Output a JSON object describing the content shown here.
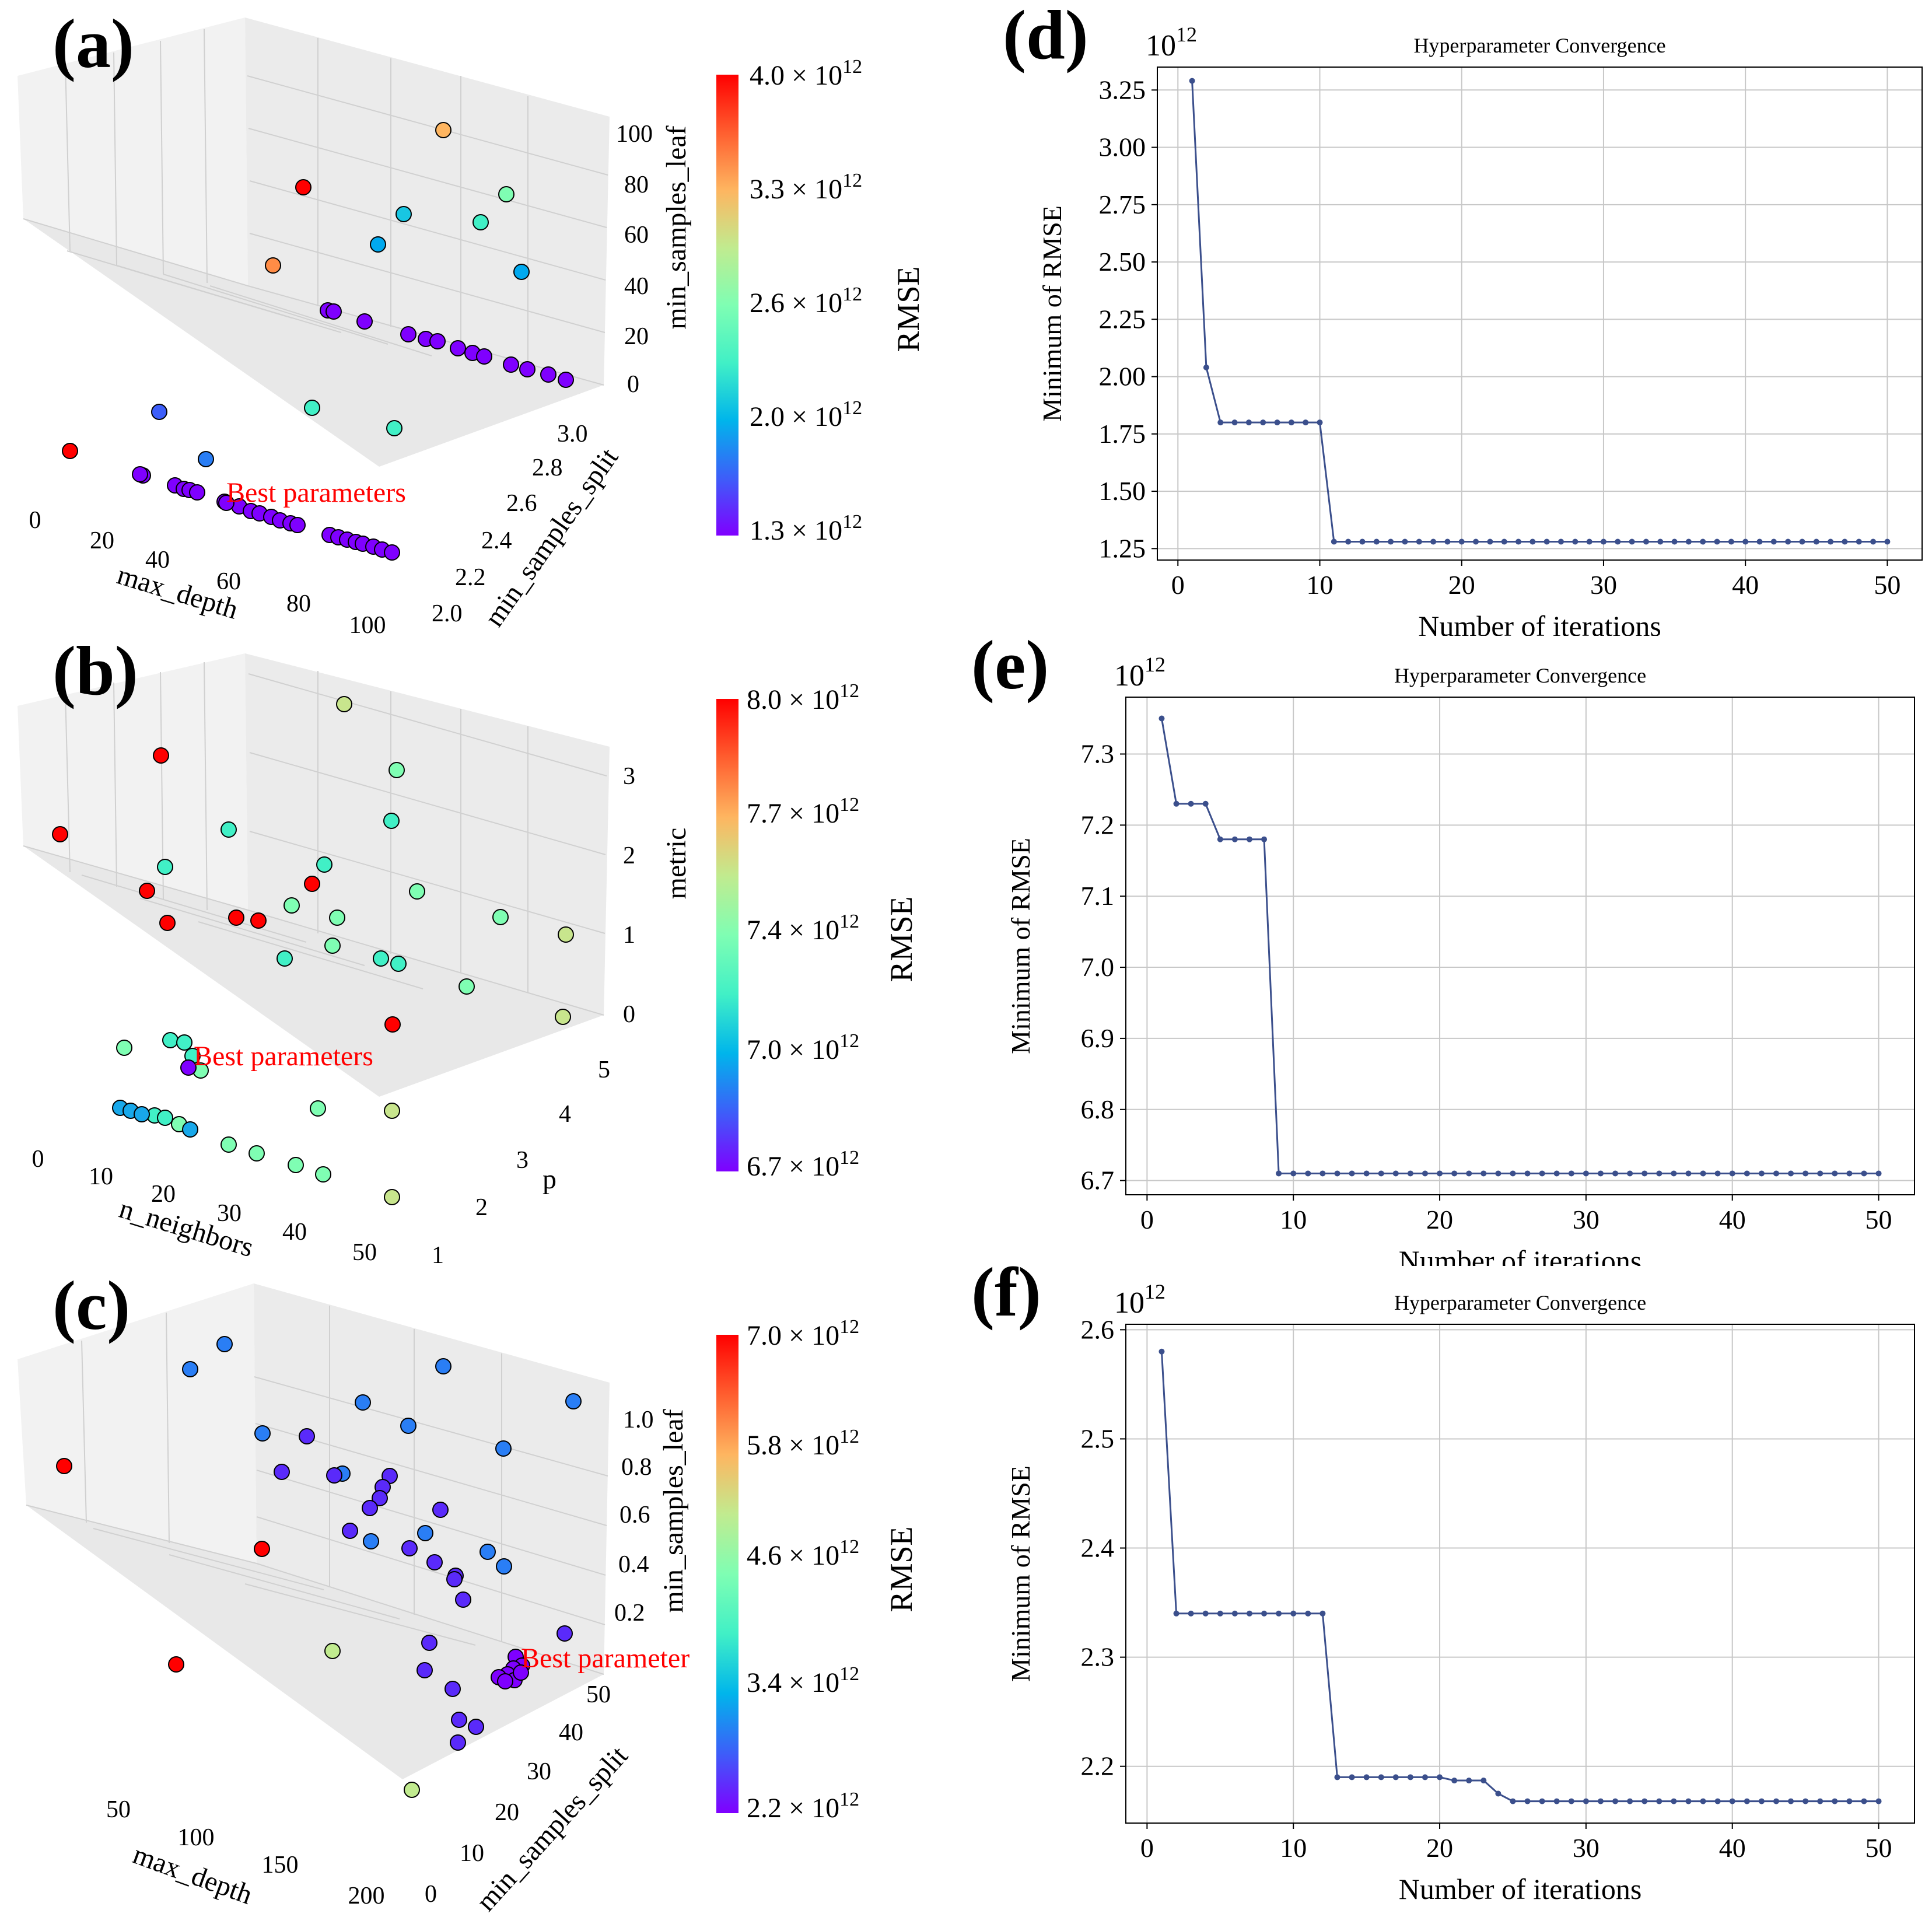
{
  "colors": {
    "line": "#3b4f8c",
    "grid": "#c8c8c8",
    "pane": "#f2f2f2",
    "best_label": "#ff0000",
    "colormap": [
      "#7f00ff",
      "#3d5ef9",
      "#00b5eb",
      "#41f0c6",
      "#7ffeb3",
      "#c1eb8f",
      "#feb560",
      "#ff5e2f",
      "#ff0000"
    ]
  },
  "panel_labels": [
    "(a)",
    "(b)",
    "(c)",
    "(d)",
    "(e)",
    "(f)"
  ],
  "scatter3d": [
    {
      "label": "(a)",
      "axes": {
        "x": {
          "label": "max_depth",
          "ticks": [
            "0",
            "20",
            "40",
            "60",
            "80",
            "100"
          ]
        },
        "y": {
          "label": "min_samples_split",
          "ticks": [
            "2.0",
            "2.2",
            "2.4",
            "2.6",
            "2.8",
            "3.0"
          ]
        },
        "z": {
          "label": "min_samples_leaf",
          "ticks": [
            "0",
            "20",
            "40",
            "60",
            "80",
            "100"
          ]
        }
      },
      "colorbar": {
        "label": "RMSE",
        "ticks": [
          "4.0 × 10",
          "3.3 × 10",
          "2.6 × 10",
          "2.0 × 10",
          "1.3 × 10"
        ],
        "exp": "12"
      },
      "annotation": "Best parameters",
      "point_colors": [
        "#ff0000",
        "#ff8c46",
        "#ff0000",
        "#feb560",
        "#7ffeb3",
        "#41f0c6",
        "#18c6e2",
        "#41f0c6",
        "#00a9ef",
        "#00a9ef",
        "#3d5ef9",
        "#41f0c6",
        "#41f0c6",
        "#2a7ef5",
        "#ff0000"
      ]
    },
    {
      "label": "(b)",
      "axes": {
        "x": {
          "label": "n_neighbors",
          "ticks": [
            "0",
            "10",
            "20",
            "30",
            "40",
            "50"
          ]
        },
        "y": {
          "label": "p",
          "ticks": [
            "1",
            "2",
            "3",
            "4",
            "5"
          ]
        },
        "z": {
          "label": "metric",
          "ticks": [
            "0",
            "1",
            "2",
            "3"
          ]
        }
      },
      "colorbar": {
        "label": "RMSE",
        "ticks": [
          "8.0 × 10",
          "7.7 × 10",
          "7.4 × 10",
          "7.0 × 10",
          "6.7 × 10"
        ],
        "exp": "12"
      },
      "annotation": "Best parameters"
    },
    {
      "label": "(c)",
      "axes": {
        "x": {
          "label": "max_depth",
          "ticks": [
            "50",
            "100",
            "150",
            "200"
          ]
        },
        "y": {
          "label": "min_samples_split",
          "ticks": [
            "0",
            "10",
            "20",
            "30",
            "40",
            "50"
          ]
        },
        "z": {
          "label": "min_samples_leaf",
          "ticks": [
            "0.2",
            "0.4",
            "0.6",
            "0.8",
            "1.0"
          ]
        }
      },
      "colorbar": {
        "label": "RMSE",
        "ticks": [
          "7.0 × 10",
          "5.8 × 10",
          "4.6 × 10",
          "3.4 × 10",
          "2.2 × 10"
        ],
        "exp": "12"
      },
      "annotation": "Best parameter"
    }
  ],
  "chart_data": [
    {
      "panel": "(d)",
      "type": "line",
      "title": "Hyperparameter Convergence",
      "xlabel": "Number of iterations",
      "ylabel": "Minimum of RMSE",
      "offset_text": "10",
      "offset_exp": "12",
      "xlim": [
        -1.45,
        52.45
      ],
      "ylim": [
        1.2,
        3.35
      ],
      "xticks": [
        0,
        10,
        20,
        30,
        40,
        50
      ],
      "yticks": [
        1.25,
        1.5,
        1.75,
        2.0,
        2.25,
        2.5,
        2.75,
        3.0,
        3.25
      ],
      "ytick_labels": [
        "1.25",
        "1.50",
        "1.75",
        "2.00",
        "2.25",
        "2.50",
        "2.75",
        "3.00",
        "3.25"
      ],
      "x": [
        1,
        2,
        3,
        4,
        5,
        6,
        7,
        8,
        9,
        10,
        11,
        12,
        13,
        14,
        15,
        16,
        17,
        18,
        19,
        20,
        21,
        22,
        23,
        24,
        25,
        26,
        27,
        28,
        29,
        30,
        31,
        32,
        33,
        34,
        35,
        36,
        37,
        38,
        39,
        40,
        41,
        42,
        43,
        44,
        45,
        46,
        47,
        48,
        49,
        50
      ],
      "y": [
        3.29,
        2.04,
        1.8,
        1.8,
        1.8,
        1.8,
        1.8,
        1.8,
        1.8,
        1.8,
        1.28,
        1.28,
        1.28,
        1.28,
        1.28,
        1.28,
        1.28,
        1.28,
        1.28,
        1.28,
        1.28,
        1.28,
        1.28,
        1.28,
        1.28,
        1.28,
        1.28,
        1.28,
        1.28,
        1.28,
        1.28,
        1.28,
        1.28,
        1.28,
        1.28,
        1.28,
        1.28,
        1.28,
        1.28,
        1.28,
        1.28,
        1.28,
        1.28,
        1.28,
        1.28,
        1.28,
        1.28,
        1.28,
        1.28,
        1.28
      ]
    },
    {
      "panel": "(e)",
      "type": "line",
      "title": "Hyperparameter Convergence",
      "xlabel": "Number of iterations",
      "ylabel": "Minimum of RMSE",
      "offset_text": "10",
      "offset_exp": "12",
      "xlim": [
        -1.45,
        52.45
      ],
      "ylim": [
        6.68,
        7.38
      ],
      "xticks": [
        0,
        10,
        20,
        30,
        40,
        50
      ],
      "yticks": [
        6.7,
        6.8,
        6.9,
        7.0,
        7.1,
        7.2,
        7.3
      ],
      "ytick_labels": [
        "6.7",
        "6.8",
        "6.9",
        "7.0",
        "7.1",
        "7.2",
        "7.3"
      ],
      "x": [
        1,
        2,
        3,
        4,
        5,
        6,
        7,
        8,
        9,
        10,
        11,
        12,
        13,
        14,
        15,
        16,
        17,
        18,
        19,
        20,
        21,
        22,
        23,
        24,
        25,
        26,
        27,
        28,
        29,
        30,
        31,
        32,
        33,
        34,
        35,
        36,
        37,
        38,
        39,
        40,
        41,
        42,
        43,
        44,
        45,
        46,
        47,
        48,
        49,
        50
      ],
      "y": [
        7.35,
        7.23,
        7.23,
        7.23,
        7.18,
        7.18,
        7.18,
        7.18,
        6.71,
        6.71,
        6.71,
        6.71,
        6.71,
        6.71,
        6.71,
        6.71,
        6.71,
        6.71,
        6.71,
        6.71,
        6.71,
        6.71,
        6.71,
        6.71,
        6.71,
        6.71,
        6.71,
        6.71,
        6.71,
        6.71,
        6.71,
        6.71,
        6.71,
        6.71,
        6.71,
        6.71,
        6.71,
        6.71,
        6.71,
        6.71,
        6.71,
        6.71,
        6.71,
        6.71,
        6.71,
        6.71,
        6.71,
        6.71,
        6.71,
        6.71
      ]
    },
    {
      "panel": "(f)",
      "type": "line",
      "title": "Hyperparameter Convergence",
      "xlabel": "Number of iterations",
      "ylabel": "Minimum of RMSE",
      "offset_text": "10",
      "offset_exp": "12",
      "xlim": [
        -1.45,
        52.45
      ],
      "ylim": [
        2.148,
        2.605
      ],
      "xticks": [
        0,
        10,
        20,
        30,
        40,
        50
      ],
      "yticks": [
        2.2,
        2.3,
        2.4,
        2.5,
        2.6
      ],
      "ytick_labels": [
        "2.2",
        "2.3",
        "2.4",
        "2.5",
        "2.6"
      ],
      "x": [
        1,
        2,
        3,
        4,
        5,
        6,
        7,
        8,
        9,
        10,
        11,
        12,
        13,
        14,
        15,
        16,
        17,
        18,
        19,
        20,
        21,
        22,
        23,
        24,
        25,
        26,
        27,
        28,
        29,
        30,
        31,
        32,
        33,
        34,
        35,
        36,
        37,
        38,
        39,
        40,
        41,
        42,
        43,
        44,
        45,
        46,
        47,
        48,
        49,
        50
      ],
      "y": [
        2.58,
        2.34,
        2.34,
        2.34,
        2.34,
        2.34,
        2.34,
        2.34,
        2.34,
        2.34,
        2.34,
        2.34,
        2.19,
        2.19,
        2.19,
        2.19,
        2.19,
        2.19,
        2.19,
        2.19,
        2.187,
        2.187,
        2.187,
        2.175,
        2.168,
        2.168,
        2.168,
        2.168,
        2.168,
        2.168,
        2.168,
        2.168,
        2.168,
        2.168,
        2.168,
        2.168,
        2.168,
        2.168,
        2.168,
        2.168,
        2.168,
        2.168,
        2.168,
        2.168,
        2.168,
        2.168,
        2.168,
        2.168,
        2.168,
        2.168
      ]
    }
  ]
}
